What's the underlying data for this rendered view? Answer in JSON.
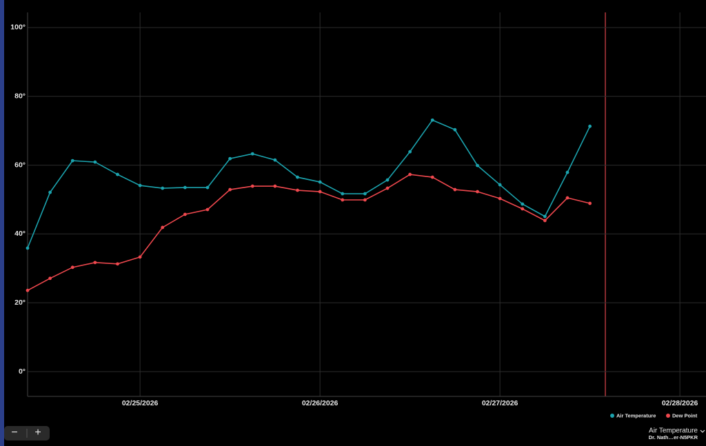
{
  "chart_data": {
    "type": "line",
    "categories": [
      null,
      null,
      null,
      null,
      null,
      "02/25/2026",
      null,
      null,
      null,
      null,
      null,
      null,
      null,
      "02/26/2026",
      null,
      null,
      null,
      null,
      null,
      null,
      null,
      "02/27/2026",
      null,
      null,
      null,
      null,
      null,
      null,
      null,
      "02/28/2026",
      null
    ],
    "series": [
      {
        "name": "Air Temperature",
        "color": "#1ba3ae",
        "values": [
          35.9,
          52.1,
          61.3,
          60.9,
          57.3,
          54.1,
          53.3,
          53.5,
          53.5,
          61.9,
          63.3,
          61.5,
          56.5,
          55.1,
          51.7,
          51.7,
          55.7,
          63.9,
          73.1,
          70.3,
          59.9,
          54.3,
          48.7,
          45.1,
          57.9,
          71.3,
          null,
          null,
          null,
          null,
          null
        ]
      },
      {
        "name": "Dew Point",
        "color": "#f0484e",
        "values": [
          23.6,
          27.1,
          30.3,
          31.7,
          31.3,
          33.3,
          41.9,
          45.7,
          47.1,
          52.9,
          53.9,
          53.9,
          52.7,
          52.3,
          49.9,
          49.9,
          53.3,
          57.3,
          56.5,
          52.9,
          52.3,
          50.3,
          47.3,
          43.9,
          50.5,
          48.9,
          null,
          null,
          null,
          null,
          null
        ]
      }
    ],
    "ylim": [
      -7.2,
      104.4
    ],
    "yticks": [
      {
        "value": 0,
        "label": "0°"
      },
      {
        "value": 20,
        "label": "20°"
      },
      {
        "value": 40,
        "label": "40°"
      },
      {
        "value": 60,
        "label": "60°"
      },
      {
        "value": 80,
        "label": "80°"
      },
      {
        "value": 100,
        "label": "100°"
      }
    ],
    "grid": true,
    "legend": "bottom-right"
  },
  "controls": {
    "zoom_out": "−",
    "zoom_in": "+"
  },
  "selector": {
    "label": "Air Temperature",
    "sublabel": "Dr. Nath…er-N5PKR"
  }
}
